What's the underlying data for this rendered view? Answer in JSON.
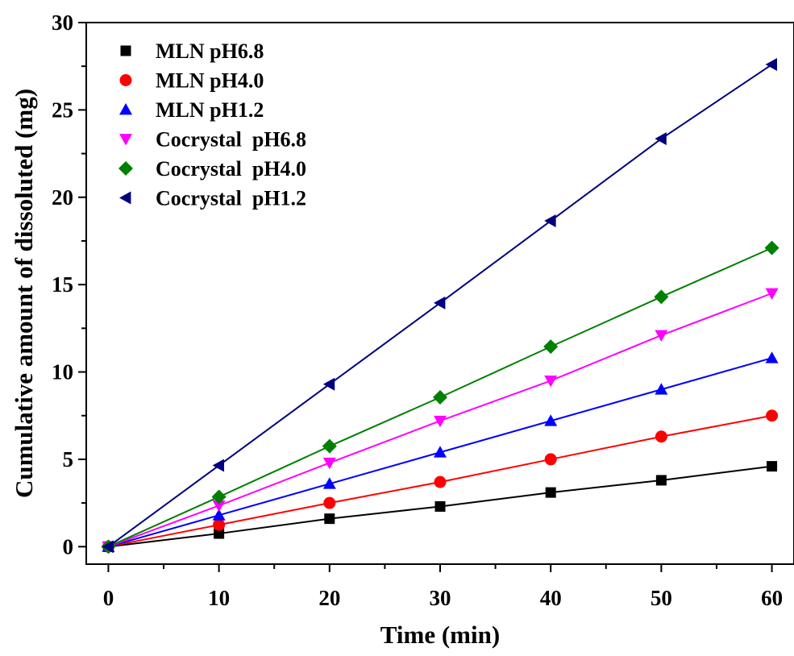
{
  "chart_data": {
    "type": "line",
    "title": "",
    "xlabel": "Time (min)",
    "ylabel": "Cumulative amount of dissoluted (mg)",
    "xlim": [
      -2,
      62
    ],
    "ylim": [
      -1,
      30
    ],
    "x_ticks": [
      0,
      10,
      20,
      30,
      40,
      50,
      60
    ],
    "y_ticks": [
      0,
      5,
      10,
      15,
      20,
      25,
      30
    ],
    "x_tick_labels": [
      "0",
      "10",
      "20",
      "30",
      "40",
      "50",
      "60"
    ],
    "y_tick_labels": [
      "0",
      "5",
      "10",
      "15",
      "20",
      "25",
      "30"
    ],
    "grid": false,
    "legend_position": "top-left",
    "x": [
      0,
      10,
      20,
      30,
      40,
      50,
      60
    ],
    "series": [
      {
        "name": "MLN pH6.8",
        "color": "#000000",
        "marker": "square",
        "values": [
          0,
          0.75,
          1.6,
          2.3,
          3.1,
          3.8,
          4.6
        ]
      },
      {
        "name": "MLN pH4.0",
        "color": "#ff0000",
        "marker": "circle",
        "values": [
          0,
          1.25,
          2.5,
          3.7,
          5.0,
          6.3,
          7.5
        ]
      },
      {
        "name": "MLN pH1.2",
        "color": "#0000ff",
        "marker": "triangle-up",
        "values": [
          0,
          1.8,
          3.6,
          5.4,
          7.2,
          9.0,
          10.8
        ]
      },
      {
        "name": "Cocrystal  pH6.8",
        "color": "#ff00ff",
        "marker": "triangle-down",
        "values": [
          0,
          2.35,
          4.8,
          7.2,
          9.5,
          12.1,
          14.5
        ]
      },
      {
        "name": "Cocrystal  pH4.0",
        "color": "#008000",
        "marker": "diamond",
        "values": [
          0,
          2.85,
          5.75,
          8.55,
          11.45,
          14.3,
          17.1
        ]
      },
      {
        "name": "Cocrystal  pH1.2",
        "color": "#000080",
        "marker": "triangle-left",
        "values": [
          0,
          4.65,
          9.3,
          13.95,
          18.65,
          23.35,
          27.6
        ]
      }
    ]
  }
}
